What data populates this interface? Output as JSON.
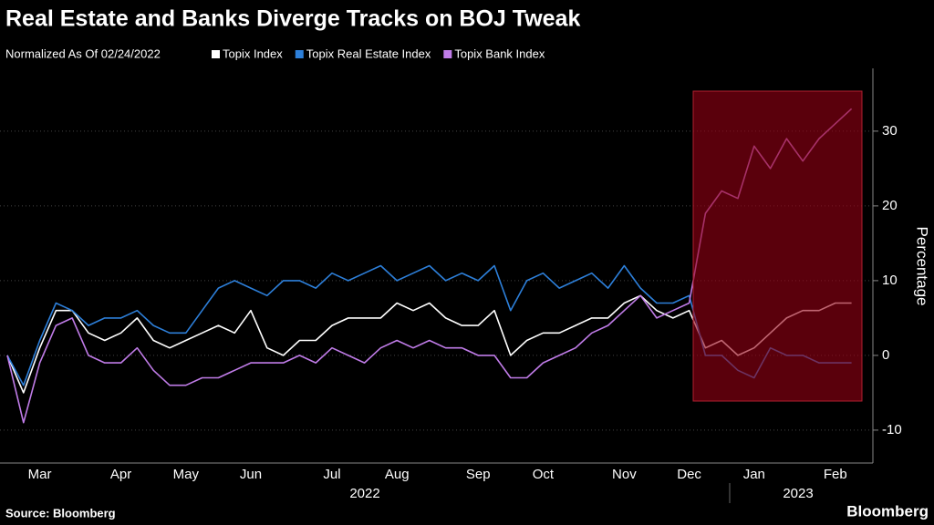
{
  "chart_data": {
    "type": "line",
    "title": "Real Estate and Banks Diverge Tracks on BOJ Tweak",
    "subtitle": "Normalized As Of 02/24/2022",
    "y_label": "Percentage",
    "source": "Source: Bloomberg",
    "brand": "Bloomberg",
    "year_labels": [
      "2022",
      "2023"
    ],
    "categories": [
      null,
      null,
      "Mar",
      null,
      null,
      null,
      null,
      "Apr",
      null,
      null,
      null,
      "May",
      null,
      null,
      null,
      "Jun",
      null,
      null,
      null,
      null,
      "Jul",
      null,
      null,
      null,
      "Aug",
      null,
      null,
      null,
      null,
      "Sep",
      null,
      null,
      null,
      "Oct",
      null,
      null,
      null,
      null,
      "Nov",
      null,
      null,
      null,
      "Dec",
      null,
      null,
      null,
      "Jan",
      null,
      null,
      null,
      null,
      "Feb",
      null
    ],
    "series": [
      {
        "name": "Topix Index",
        "color": "#ffffff",
        "values": [
          0,
          -5,
          1,
          6,
          6,
          3,
          2,
          3,
          5,
          2,
          1,
          2,
          3,
          4,
          3,
          6,
          1,
          0,
          2,
          2,
          4,
          5,
          5,
          5,
          7,
          6,
          7,
          5,
          4,
          4,
          6,
          0,
          2,
          3,
          3,
          4,
          5,
          5,
          7,
          8,
          6,
          5,
          6,
          1,
          2,
          0,
          1,
          3,
          5,
          6,
          6,
          7,
          7
        ]
      },
      {
        "name": "Topix Real Estate Index",
        "color": "#2d7fd9",
        "values": [
          0,
          -4,
          2,
          7,
          6,
          4,
          5,
          5,
          6,
          4,
          3,
          3,
          6,
          9,
          10,
          9,
          8,
          10,
          10,
          9,
          11,
          10,
          11,
          12,
          10,
          11,
          12,
          10,
          11,
          10,
          12,
          6,
          10,
          11,
          9,
          10,
          11,
          9,
          12,
          9,
          7,
          7,
          8,
          0,
          0,
          -2,
          -3,
          1,
          0,
          0,
          -1,
          -1,
          -1
        ]
      },
      {
        "name": "Topix Bank Index",
        "color": "#c07ce8",
        "values": [
          0,
          -9,
          -1,
          4,
          5,
          0,
          -1,
          -1,
          1,
          -2,
          -4,
          -4,
          -3,
          -3,
          -2,
          -1,
          -1,
          -1,
          0,
          -1,
          1,
          0,
          -1,
          1,
          2,
          1,
          2,
          1,
          1,
          0,
          0,
          -3,
          -3,
          -1,
          0,
          1,
          3,
          4,
          6,
          8,
          5,
          6,
          7,
          19,
          22,
          21,
          28,
          25,
          29,
          26,
          29,
          31,
          33
        ]
      }
    ],
    "ylim": [
      -14.4,
      38.4
    ],
    "yticks": [
      -10,
      0,
      10,
      20,
      30
    ],
    "grid": true
  }
}
